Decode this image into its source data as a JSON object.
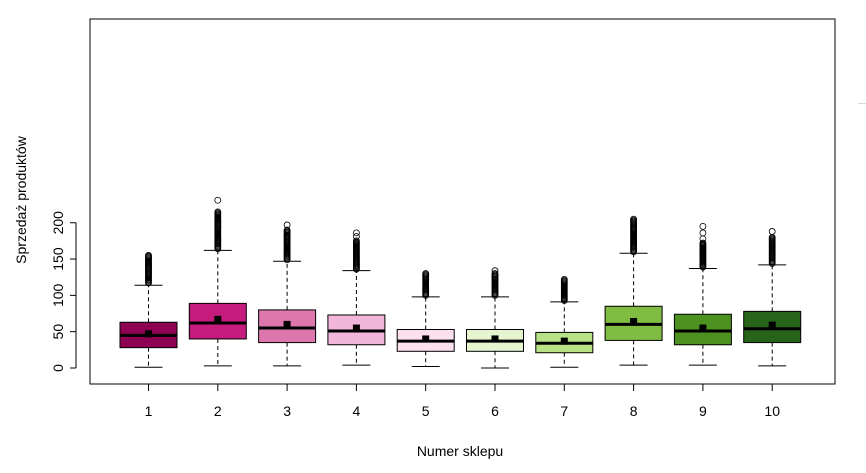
{
  "chart_data": {
    "type": "boxplot",
    "xlabel": "Numer sklepu",
    "ylabel": "Sprzedaż produktów",
    "categories": [
      "1",
      "2",
      "3",
      "4",
      "5",
      "6",
      "7",
      "8",
      "9",
      "10"
    ],
    "ylim": [
      0,
      230
    ],
    "yticks": [
      0,
      50,
      100,
      150,
      200
    ],
    "grid": false,
    "legend": "none",
    "boxes": [
      {
        "category": "1",
        "min": 1,
        "q1": 28,
        "median": 45,
        "q3": 63,
        "max": 114,
        "mean": 47,
        "outliers_from": 117,
        "outliers_to": 155,
        "color": "#8E0152"
      },
      {
        "category": "2",
        "min": 3,
        "q1": 40,
        "median": 62,
        "q3": 89,
        "max": 162,
        "mean": 67,
        "outliers_from": 164,
        "outliers_to": 215,
        "outliers_extra": [
          231
        ],
        "color": "#C51B7D"
      },
      {
        "category": "3",
        "min": 3,
        "q1": 35,
        "median": 55,
        "q3": 80,
        "max": 147,
        "mean": 60,
        "outliers_from": 149,
        "outliers_to": 190,
        "outliers_extra": [
          197
        ],
        "color": "#DE77AE"
      },
      {
        "category": "4",
        "min": 4,
        "q1": 32,
        "median": 51,
        "q3": 73,
        "max": 134,
        "mean": 55,
        "outliers_from": 136,
        "outliers_to": 175,
        "outliers_extra": [
          181,
          186
        ],
        "color": "#F1B6DA"
      },
      {
        "category": "5",
        "min": 2,
        "q1": 23,
        "median": 37,
        "q3": 53,
        "max": 98,
        "mean": 40,
        "outliers_from": 100,
        "outliers_to": 130,
        "color": "#FDE0EF"
      },
      {
        "category": "6",
        "min": 0,
        "q1": 23,
        "median": 37,
        "q3": 53,
        "max": 98,
        "mean": 40,
        "outliers_from": 100,
        "outliers_to": 130,
        "outliers_extra": [
          134
        ],
        "color": "#E6F5D0"
      },
      {
        "category": "7",
        "min": 1,
        "q1": 21,
        "median": 34,
        "q3": 49,
        "max": 91,
        "mean": 37,
        "outliers_from": 93,
        "outliers_to": 122,
        "color": "#B8E186"
      },
      {
        "category": "8",
        "min": 4,
        "q1": 38,
        "median": 60,
        "q3": 85,
        "max": 158,
        "mean": 64,
        "outliers_from": 160,
        "outliers_to": 205,
        "color": "#7FBC41"
      },
      {
        "category": "9",
        "min": 4,
        "q1": 32,
        "median": 51,
        "q3": 74,
        "max": 137,
        "mean": 55,
        "outliers_from": 139,
        "outliers_to": 172,
        "outliers_extra": [
          178,
          186,
          195
        ],
        "color": "#4D9221"
      },
      {
        "category": "10",
        "min": 3,
        "q1": 35,
        "median": 54,
        "q3": 78,
        "max": 142,
        "mean": 59,
        "outliers_from": 144,
        "outliers_to": 180,
        "outliers_extra": [
          188
        ],
        "color": "#276419"
      }
    ]
  }
}
